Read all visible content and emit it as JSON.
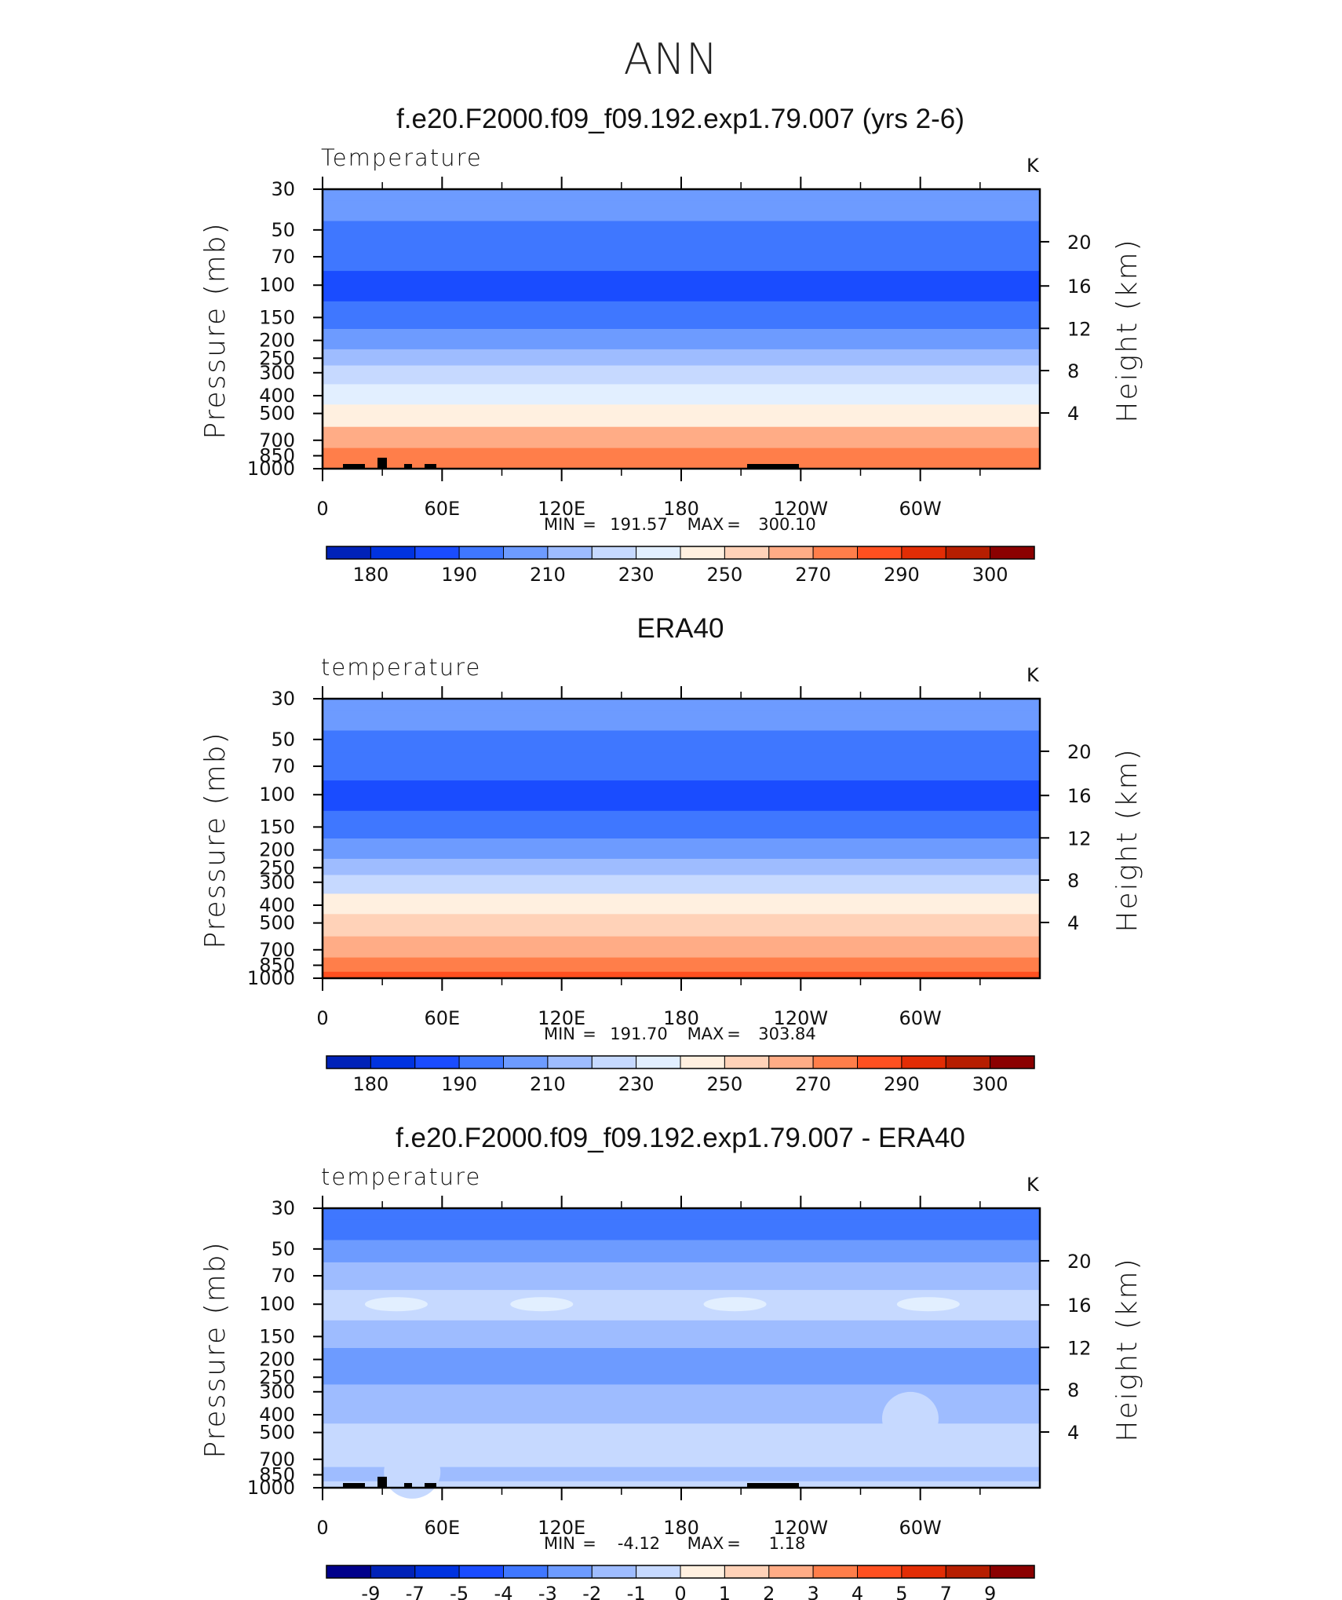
{
  "page_title": "ANN",
  "chart_data": [
    {
      "type": "contour",
      "title": "f.e20.F2000.f09_f09.192.exp1.79.007 (yrs 2-6)",
      "variable_label": "Temperature",
      "units": "K",
      "ylabel": "Pressure (mb)",
      "ylabel_right": "Height (km)",
      "x_ticks": [
        "0",
        "60E",
        "120E",
        "180",
        "120W",
        "60W"
      ],
      "y_ticks": [
        "30",
        "50",
        "70",
        "100",
        "150",
        "200",
        "250",
        "300",
        "400",
        "500",
        "700",
        "850",
        "1000"
      ],
      "y_right_ticks": [
        "20",
        "16",
        "12",
        "8",
        "4"
      ],
      "min_label": "MIN",
      "min_value": "191.57",
      "max_label": "MAX",
      "max_value": "300.10",
      "colorbar_labels": [
        "180",
        "190",
        "210",
        "230",
        "250",
        "270",
        "290",
        "300"
      ],
      "levels": [
        {
          "p": 30,
          "v": 210
        },
        {
          "p": 40,
          "v": 212
        },
        {
          "p": 50,
          "v": 208
        },
        {
          "p": 70,
          "v": 200
        },
        {
          "p": 100,
          "v": 198
        },
        {
          "p": 150,
          "v": 206
        },
        {
          "p": 200,
          "v": 214
        },
        {
          "p": 250,
          "v": 222
        },
        {
          "p": 300,
          "v": 232
        },
        {
          "p": 400,
          "v": 248
        },
        {
          "p": 500,
          "v": 258
        },
        {
          "p": 700,
          "v": 274
        },
        {
          "p": 850,
          "v": 284
        },
        {
          "p": 1000,
          "v": 289
        }
      ]
    },
    {
      "type": "contour",
      "title": "ERA40",
      "variable_label": "temperature",
      "units": "K",
      "ylabel": "Pressure (mb)",
      "ylabel_right": "Height (km)",
      "x_ticks": [
        "0",
        "60E",
        "120E",
        "180",
        "120W",
        "60W"
      ],
      "y_ticks": [
        "30",
        "50",
        "70",
        "100",
        "150",
        "200",
        "250",
        "300",
        "400",
        "500",
        "700",
        "850",
        "1000"
      ],
      "y_right_ticks": [
        "20",
        "16",
        "12",
        "8",
        "4"
      ],
      "min_label": "MIN",
      "min_value": "191.70",
      "max_label": "MAX",
      "max_value": "303.84",
      "colorbar_labels": [
        "180",
        "190",
        "210",
        "230",
        "250",
        "270",
        "290",
        "300"
      ],
      "levels": [
        {
          "p": 30,
          "v": 214
        },
        {
          "p": 40,
          "v": 213
        },
        {
          "p": 50,
          "v": 208
        },
        {
          "p": 70,
          "v": 201
        },
        {
          "p": 100,
          "v": 199
        },
        {
          "p": 150,
          "v": 207
        },
        {
          "p": 200,
          "v": 216
        },
        {
          "p": 250,
          "v": 224
        },
        {
          "p": 300,
          "v": 234
        },
        {
          "p": 400,
          "v": 250
        },
        {
          "p": 500,
          "v": 260
        },
        {
          "p": 700,
          "v": 276
        },
        {
          "p": 850,
          "v": 286
        },
        {
          "p": 1000,
          "v": 292
        }
      ]
    },
    {
      "type": "contour",
      "title": "f.e20.F2000.f09_f09.192.exp1.79.007 - ERA40",
      "variable_label": "temperature",
      "units": "K",
      "ylabel": "Pressure (mb)",
      "ylabel_right": "Height (km)",
      "x_ticks": [
        "0",
        "60E",
        "120E",
        "180",
        "120W",
        "60W"
      ],
      "y_ticks": [
        "30",
        "50",
        "70",
        "100",
        "150",
        "200",
        "250",
        "300",
        "400",
        "500",
        "700",
        "850",
        "1000"
      ],
      "y_right_ticks": [
        "20",
        "16",
        "12",
        "8",
        "4"
      ],
      "min_label": "MIN",
      "min_value": "-4.12",
      "max_label": "MAX",
      "max_value": "1.18",
      "colorbar_labels": [
        "-9",
        "-7",
        "-5",
        "-4",
        "-3",
        "-2",
        "-1",
        "0",
        "1",
        "2",
        "3",
        "4",
        "5",
        "7",
        "9"
      ],
      "levels": [
        {
          "p": 30,
          "v": -3.6
        },
        {
          "p": 40,
          "v": -3.5
        },
        {
          "p": 50,
          "v": -2.6
        },
        {
          "p": 70,
          "v": -1.8
        },
        {
          "p": 100,
          "v": -0.5
        },
        {
          "p": 150,
          "v": -1.7
        },
        {
          "p": 200,
          "v": -2.4
        },
        {
          "p": 250,
          "v": -2.2
        },
        {
          "p": 300,
          "v": -1.6
        },
        {
          "p": 400,
          "v": -1.3
        },
        {
          "p": 500,
          "v": -0.6
        },
        {
          "p": 700,
          "v": -0.5
        },
        {
          "p": 850,
          "v": -1.2
        },
        {
          "p": 1000,
          "v": -0.4
        }
      ],
      "patches": [
        {
          "lon": 37,
          "p": 100,
          "v": 0.5
        },
        {
          "lon": 110,
          "p": 100,
          "v": 0.5
        },
        {
          "lon": 207,
          "p": 100,
          "v": 0.5
        },
        {
          "lon": 304,
          "p": 100,
          "v": 0.5
        },
        {
          "lon": 295,
          "p": 420,
          "v": -0.5
        },
        {
          "lon": 45,
          "p": 820,
          "v": -0.5
        }
      ]
    }
  ],
  "colormap": [
    "#00008b",
    "#0022b8",
    "#0033e0",
    "#1a4cff",
    "#3f77ff",
    "#6d9bff",
    "#9ebcff",
    "#c6d9ff",
    "#e2efff",
    "#fff0e0",
    "#ffd2b8",
    "#ffac86",
    "#ff7e4a",
    "#ff5020",
    "#e22d05",
    "#b61e00",
    "#8b0000"
  ],
  "topography_color": "#000000"
}
